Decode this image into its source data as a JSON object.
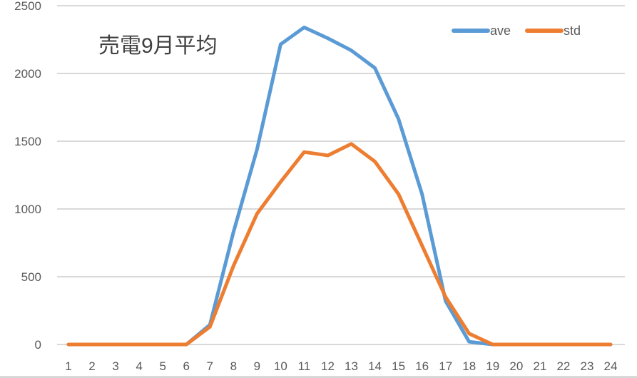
{
  "chart_data": {
    "type": "line",
    "title": "売電9月平均",
    "xlabel": "",
    "ylabel": "",
    "ylim": [
      0,
      2500
    ],
    "yticks": [
      0,
      500,
      1000,
      1500,
      2000,
      2500
    ],
    "grid": true,
    "legend_position": "top-right",
    "x": [
      1,
      2,
      3,
      4,
      5,
      6,
      7,
      8,
      9,
      10,
      11,
      12,
      13,
      14,
      15,
      16,
      17,
      18,
      19,
      20,
      21,
      22,
      23,
      24
    ],
    "series": [
      {
        "name": "ave",
        "color": "#5B9BD5",
        "values": [
          0,
          0,
          0,
          0,
          0,
          0,
          145,
          830,
          1440,
          2215,
          2340,
          2260,
          2170,
          2040,
          1665,
          1110,
          320,
          20,
          0,
          0,
          0,
          0,
          0,
          0
        ]
      },
      {
        "name": "std",
        "color": "#ED7D31",
        "values": [
          0,
          0,
          0,
          0,
          0,
          0,
          130,
          580,
          965,
          1200,
          1420,
          1395,
          1480,
          1350,
          1110,
          730,
          350,
          80,
          0,
          0,
          0,
          0,
          0,
          0
        ]
      }
    ]
  },
  "colors": {
    "grid": "#D9D9D9",
    "text": "#595959",
    "title": "#404040"
  }
}
